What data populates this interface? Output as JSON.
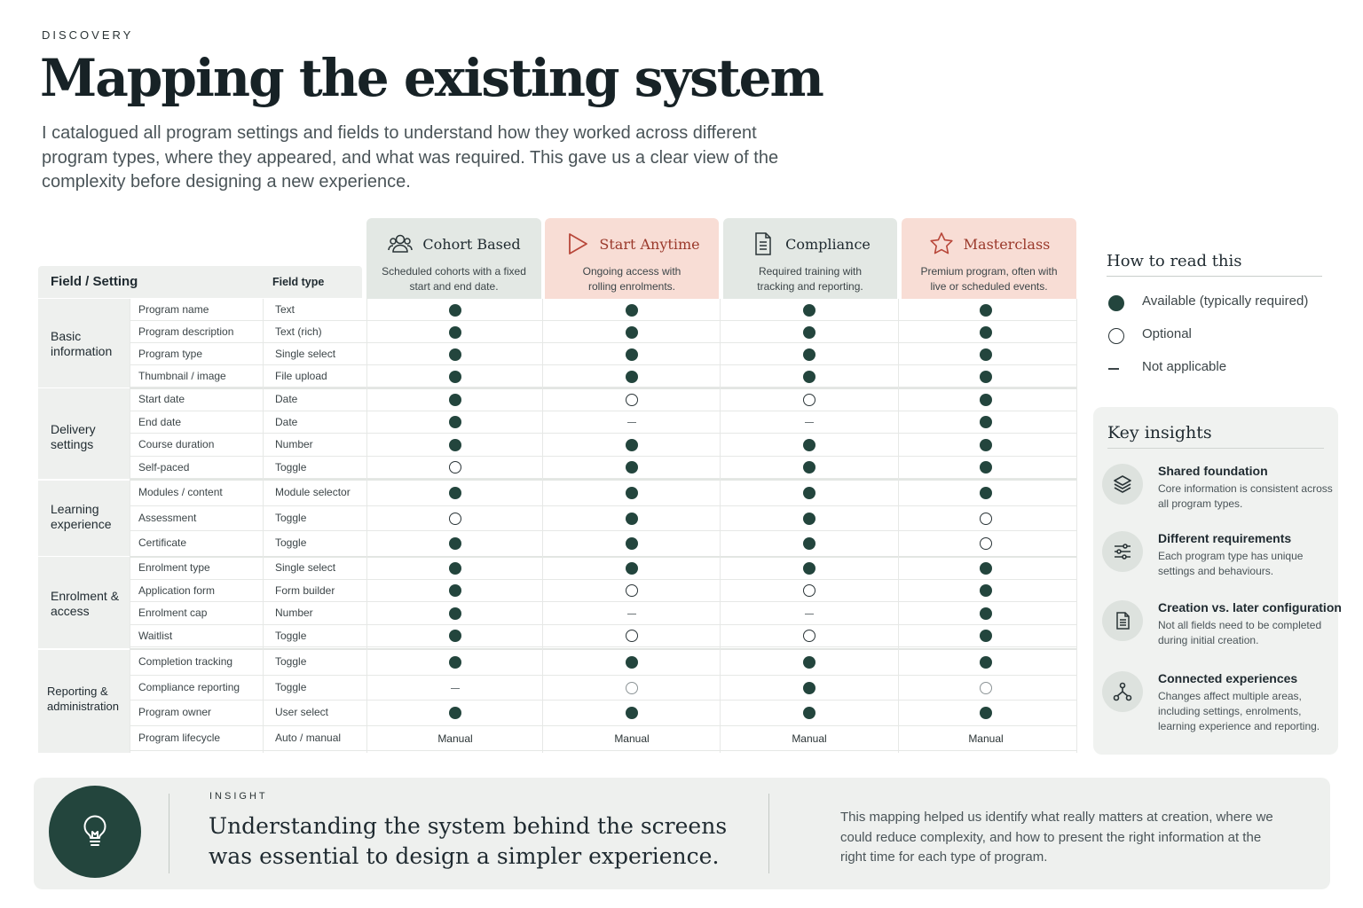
{
  "header": {
    "eyebrow": "DISCOVERY",
    "title": "Mapping the existing system",
    "intro": "I catalogued all program settings and fields to understand how they worked across different program types, where they appeared, and what was required. This gave us a clear view of the complexity before designing a new experience."
  },
  "program_types": [
    {
      "name": "Cohort Based",
      "desc": "Scheduled cohorts with a fixed start and end date.",
      "icon": "people-icon",
      "accent": "#e3e8e4"
    },
    {
      "name": "Start Anytime",
      "desc": "Ongoing access with rolling enrolments.",
      "icon": "play-icon",
      "accent": "#f8ddd5"
    },
    {
      "name": "Compliance",
      "desc": "Required training with tracking and reporting.",
      "icon": "document-icon",
      "accent": "#e3e8e4"
    },
    {
      "name": "Masterclass",
      "desc": "Premium program, often with live or scheduled events.",
      "icon": "star-icon",
      "accent": "#f8ddd5"
    }
  ],
  "table": {
    "col_field": "Field / Setting",
    "col_type": "Field type",
    "groups": [
      {
        "label": "Basic information",
        "rows": [
          {
            "field": "Program name",
            "type": "Text",
            "values": [
              "available",
              "available",
              "available",
              "available"
            ]
          },
          {
            "field": "Program description",
            "type": "Text (rich)",
            "values": [
              "available",
              "available",
              "available",
              "available"
            ]
          },
          {
            "field": "Program type",
            "type": "Single select",
            "values": [
              "available",
              "available",
              "available",
              "available"
            ]
          },
          {
            "field": "Thumbnail / image",
            "type": "File upload",
            "values": [
              "available",
              "available",
              "available",
              "available"
            ]
          }
        ]
      },
      {
        "label": "Delivery settings",
        "rows": [
          {
            "field": "Start date",
            "type": "Date",
            "values": [
              "available",
              "optional",
              "optional",
              "available"
            ]
          },
          {
            "field": "End date",
            "type": "Date",
            "values": [
              "available",
              "not_applicable",
              "not_applicable",
              "available"
            ]
          },
          {
            "field": "Course duration",
            "type": "Number",
            "values": [
              "available",
              "available",
              "available",
              "available"
            ]
          },
          {
            "field": "Self-paced",
            "type": "Toggle",
            "values": [
              "optional",
              "available",
              "available",
              "available"
            ]
          }
        ]
      },
      {
        "label": "Learning experience",
        "rows": [
          {
            "field": "Modules / content",
            "type": "Module selector",
            "values": [
              "available",
              "available",
              "available",
              "available"
            ]
          },
          {
            "field": "Assessment",
            "type": "Toggle",
            "values": [
              "optional",
              "available",
              "available",
              "optional"
            ]
          },
          {
            "field": "Certificate",
            "type": "Toggle",
            "values": [
              "available",
              "available",
              "available",
              "optional"
            ]
          }
        ]
      },
      {
        "label": "Enrolment & access",
        "rows": [
          {
            "field": "Enrolment type",
            "type": "Single select",
            "values": [
              "available",
              "available",
              "available",
              "available"
            ]
          },
          {
            "field": "Application form",
            "type": "Form builder",
            "values": [
              "available",
              "optional",
              "optional",
              "available"
            ]
          },
          {
            "field": "Enrolment cap",
            "type": "Number",
            "values": [
              "available",
              "not_applicable",
              "not_applicable",
              "available"
            ]
          },
          {
            "field": "Waitlist",
            "type": "Toggle",
            "values": [
              "available",
              "optional",
              "optional",
              "available"
            ]
          }
        ]
      },
      {
        "label": "Reporting & administration",
        "rows": [
          {
            "field": "Completion tracking",
            "type": "Toggle",
            "values": [
              "available",
              "available",
              "available",
              "available"
            ]
          },
          {
            "field": "Compliance reporting",
            "type": "Toggle",
            "values": [
              "not_applicable",
              "optional",
              "available",
              "optional"
            ]
          },
          {
            "field": "Program owner",
            "type": "User select",
            "values": [
              "available",
              "available",
              "available",
              "available"
            ]
          },
          {
            "field": "Program lifecycle",
            "type": "Auto / manual",
            "values": [
              "Manual",
              "Manual",
              "Manual",
              "Manual"
            ]
          }
        ]
      }
    ]
  },
  "legend": {
    "title": "How to read this",
    "items": [
      {
        "kind": "filled",
        "label": "Available (typically required)"
      },
      {
        "kind": "empty",
        "label": "Optional"
      },
      {
        "kind": "dash",
        "label": "Not applicable"
      }
    ]
  },
  "insights": {
    "title": "Key insights",
    "items": [
      {
        "icon": "layers-icon",
        "title": "Shared foundation",
        "desc": "Core information is consistent across all program types."
      },
      {
        "icon": "sliders-icon",
        "title": "Different requirements",
        "desc": "Each program type has unique settings and behaviours."
      },
      {
        "icon": "document-icon",
        "title": "Creation vs. later configuration",
        "desc": "Not all fields need to be completed during initial creation."
      },
      {
        "icon": "network-icon",
        "title": "Connected experiences",
        "desc": "Changes affect multiple areas, including settings, enrolments, learning experience and reporting."
      }
    ]
  },
  "banner": {
    "eyebrow": "INSIGHT",
    "headline": "Understanding the system behind the screens was essential to design a simpler experience.",
    "text": "This mapping helped us identify what really matters at creation, where we could reduce complexity, and how to present the right information at the right time for each type of program.",
    "icon": "lightbulb-icon"
  },
  "colors": {
    "accent_green": "#23453d",
    "accent_red": "#9b3a2c",
    "card_green": "#e3e8e4",
    "card_pink": "#f8ddd5"
  }
}
